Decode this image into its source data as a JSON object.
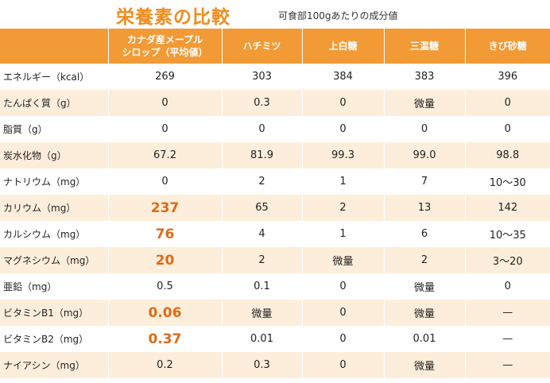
{
  "title": "栄養素の比較",
  "subtitle": "可食部100gあたりの成分値",
  "columns": [
    "",
    [
      "カナダ産メープル",
      "シロップ（平均値）"
    ],
    "ハチミツ",
    "上白糖",
    "三温糖",
    "きび砂糖"
  ],
  "accent_color": "#f29a35",
  "highlight_color": "#e06a14",
  "rows": [
    {
      "label": "エネルギー（kcal）",
      "values": [
        "269",
        "303",
        "384",
        "383",
        "396"
      ],
      "highlight": false
    },
    {
      "label": "たんぱく質（g）",
      "values": [
        "0",
        "0.3",
        "0",
        "微量",
        "0"
      ],
      "highlight": false
    },
    {
      "label": "脂質（g）",
      "values": [
        "0",
        "0",
        "0",
        "0",
        "0"
      ],
      "highlight": false
    },
    {
      "label": "炭水化物（g）",
      "values": [
        "67.2",
        "81.9",
        "99.3",
        "99.0",
        "98.8"
      ],
      "highlight": false
    },
    {
      "label": "ナトリウム（mg）",
      "values": [
        "0",
        "2",
        "1",
        "7",
        "10～30"
      ],
      "highlight": false
    },
    {
      "label": "カリウム（mg）",
      "values": [
        "237",
        "65",
        "2",
        "13",
        "142"
      ],
      "highlight": true
    },
    {
      "label": "カルシウム（mg）",
      "values": [
        "76",
        "4",
        "1",
        "6",
        "10～35"
      ],
      "highlight": true
    },
    {
      "label": "マグネシウム（mg）",
      "values": [
        "20",
        "2",
        "微量",
        "2",
        "3～20"
      ],
      "highlight": true
    },
    {
      "label": "亜鉛（mg）",
      "values": [
        "0.5",
        "0.1",
        "0",
        "微量",
        "0"
      ],
      "highlight": false
    },
    {
      "label": "ビタミンB1（mg）",
      "values": [
        "0.06",
        "微量",
        "0",
        "微量",
        "—"
      ],
      "highlight": true
    },
    {
      "label": "ビタミンB2（mg）",
      "values": [
        "0.37",
        "0.01",
        "0",
        "0.01",
        "—"
      ],
      "highlight": true
    },
    {
      "label": "ナイアシン（mg）",
      "values": [
        "0.2",
        "0.3",
        "0",
        "微量",
        "—"
      ],
      "highlight": false
    }
  ]
}
